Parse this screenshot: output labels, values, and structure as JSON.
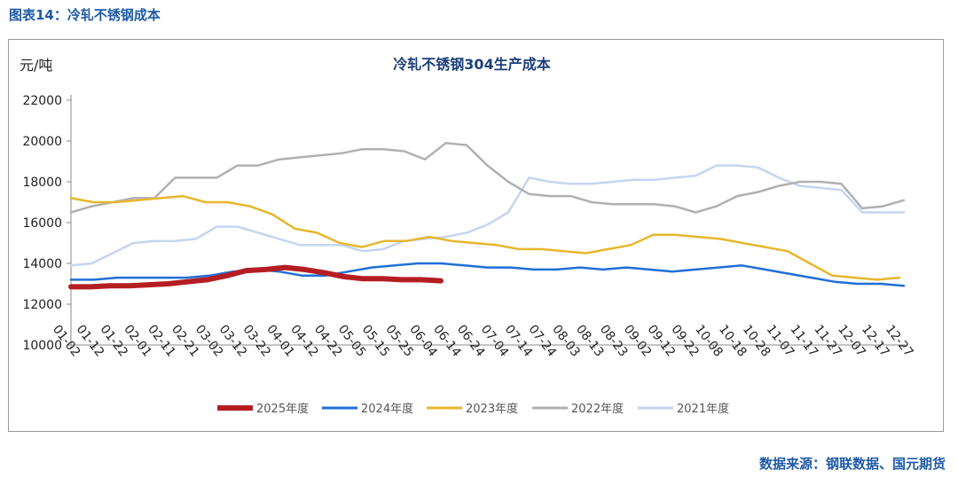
{
  "figure_caption": "图表14：冷轧不锈钢成本",
  "source": "数据来源：钢联数据、国元期货",
  "chart_data": {
    "type": "line",
    "title": "冷轧不锈钢304生产成本",
    "ylabel": "元/吨",
    "ylim": [
      10000,
      22000
    ],
    "yticks": [
      10000,
      12000,
      14000,
      16000,
      18000,
      20000,
      22000
    ],
    "x_ticks": [
      "01-02",
      "01-12",
      "01-22",
      "02-01",
      "02-11",
      "02-21",
      "03-02",
      "03-12",
      "03-22",
      "04-01",
      "04-12",
      "04-22",
      "05-05",
      "05-15",
      "05-25",
      "06-04",
      "06-14",
      "06-24",
      "07-04",
      "07-14",
      "07-24",
      "08-03",
      "08-13",
      "08-23",
      "09-02",
      "09-12",
      "09-22",
      "10-08",
      "10-18",
      "10-28",
      "11-07",
      "11-17",
      "11-27",
      "12-07",
      "12-17",
      "12-27"
    ],
    "legend_position": "bottom",
    "grid": false,
    "series": [
      {
        "name": "2021年度",
        "color": "#c5d5f0",
        "width": 2.5,
        "values": [
          13900,
          14000,
          14500,
          15000,
          15100,
          15100,
          15200,
          15800,
          15800,
          15500,
          15200,
          14900,
          14900,
          14900,
          14600,
          14700,
          15100,
          15200,
          15300,
          15500,
          15900,
          16500,
          18200,
          18000,
          17900,
          17900,
          18000,
          18100,
          18100,
          18200,
          18300,
          18800,
          18800,
          18700,
          18200,
          17800,
          17700,
          17600,
          16500,
          16500,
          16500
        ]
      },
      {
        "name": "2022年度",
        "color": "#b0b0b0",
        "width": 2.5,
        "values": [
          16500,
          16800,
          17000,
          17200,
          17200,
          18200,
          18200,
          18200,
          18800,
          18800,
          19100,
          19200,
          19300,
          19400,
          19600,
          19600,
          19500,
          19100,
          19900,
          19800,
          18800,
          18000,
          17400,
          17300,
          17300,
          17000,
          16900,
          16900,
          16900,
          16800,
          16500,
          16800,
          17300,
          17500,
          17800,
          18000,
          18000,
          17900,
          16700,
          16800,
          17100
        ]
      },
      {
        "name": "2023年度",
        "color": "#e6b72d",
        "width": 2.5,
        "values": [
          17200,
          17000,
          17000,
          17100,
          17200,
          17300,
          17000,
          17000,
          16800,
          16400,
          15700,
          15500,
          15000,
          14800,
          15100,
          15100,
          15300,
          15100,
          15000,
          14900,
          14700,
          14700,
          14600,
          14500,
          14700,
          14900,
          15400,
          15400,
          15300,
          15200,
          15000,
          14800,
          14600,
          14000,
          13400,
          13300,
          13200,
          13300
        ]
      },
      {
        "name": "2024年度",
        "color": "#1f6fd6",
        "width": 2.5,
        "values": [
          13200,
          13200,
          13300,
          13300,
          13300,
          13300,
          13400,
          13600,
          13700,
          13600,
          13400,
          13400,
          13600,
          13800,
          13900,
          14000,
          14000,
          13900,
          13800,
          13800,
          13700,
          13700,
          13800,
          13700,
          13800,
          13700,
          13600,
          13700,
          13800,
          13900,
          13700,
          13500,
          13300,
          13100,
          13000,
          13000,
          12900
        ]
      },
      {
        "name": "2025年度",
        "color": "#b41e22",
        "width": 6,
        "values": [
          12850,
          12850,
          12900,
          12900,
          12950,
          13000,
          13100,
          13200,
          13400,
          13650,
          13700,
          13800,
          13700,
          13550,
          13350,
          13250,
          13250,
          13200,
          13200,
          13150
        ]
      }
    ]
  }
}
